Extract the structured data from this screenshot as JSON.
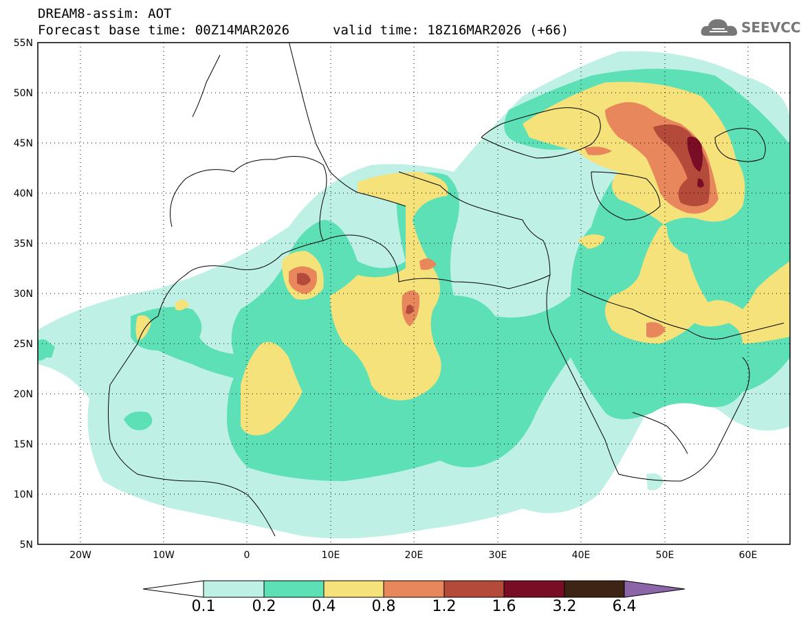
{
  "header": {
    "title_line1": "DREAM8-assim: AOT",
    "title_line2": "Forecast base time: 00Z14MAR2026",
    "valid_time": "valid time: 18Z16MAR2026 (+66)"
  },
  "logo": {
    "text": "SEEVCCC",
    "icon": "cloud-icon"
  },
  "map": {
    "field": "Aerosol Optical Thickness (AOT)",
    "lat_range": [
      5,
      55
    ],
    "lon_range": [
      -25,
      65
    ],
    "lat_labels": [
      "55N",
      "50N",
      "45N",
      "40N",
      "35N",
      "30N",
      "25N",
      "20N",
      "15N",
      "10N",
      "5N"
    ],
    "lon_labels": [
      "20W",
      "10W",
      "0",
      "10E",
      "20E",
      "30E",
      "40E",
      "50E",
      "60E"
    ]
  },
  "colorbar": {
    "levels": [
      "0.1",
      "0.2",
      "0.4",
      "0.8",
      "1.2",
      "1.6",
      "3.2",
      "6.4"
    ],
    "colors": [
      "#ffffff",
      "#bff0e6",
      "#5ee0b6",
      "#f5e27a",
      "#e8875c",
      "#b34a3a",
      "#7a0d26",
      "#3e2414",
      "#8a66a8"
    ]
  }
}
